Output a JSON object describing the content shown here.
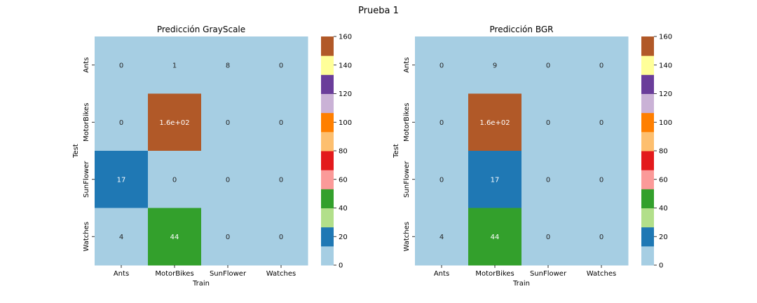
{
  "figure": {
    "suptitle": "Prueba 1"
  },
  "colormap": [
    "#a6cee3",
    "#1f78b4",
    "#b2df8a",
    "#33a02c",
    "#fb9a99",
    "#e31a1c",
    "#fdbf6f",
    "#ff7f00",
    "#cab2d6",
    "#6a3d9a",
    "#ffff99",
    "#b15928"
  ],
  "chart_data": [
    {
      "type": "heatmap",
      "title": "Predicción GrayScale",
      "xlabel": "Train",
      "ylabel": "Test",
      "x_categories": [
        "Ants",
        "MotorBikes",
        "SunFlower",
        "Watches"
      ],
      "y_categories": [
        "Ants",
        "MotorBikes",
        "SunFlower",
        "Watches"
      ],
      "values": [
        [
          0,
          1,
          8,
          0
        ],
        [
          0,
          160,
          0,
          0
        ],
        [
          17,
          0,
          0,
          0
        ],
        [
          4,
          44,
          0,
          0
        ]
      ],
      "annotations": [
        [
          "0",
          "1",
          "8",
          "0"
        ],
        [
          "0",
          "1.6e+02",
          "0",
          "0"
        ],
        [
          "17",
          "0",
          "0",
          "0"
        ],
        [
          "4",
          "44",
          "0",
          "0"
        ]
      ],
      "vmin": 0,
      "vmax": 160,
      "colorbar_ticks": [
        "0",
        "20",
        "40",
        "60",
        "80",
        "100",
        "120",
        "140",
        "160"
      ]
    },
    {
      "type": "heatmap",
      "title": "Predicción BGR",
      "xlabel": "Train",
      "ylabel": "Test",
      "x_categories": [
        "Ants",
        "MotorBikes",
        "SunFlower",
        "Watches"
      ],
      "y_categories": [
        "Ants",
        "MotorBikes",
        "SunFlower",
        "Watches"
      ],
      "values": [
        [
          0,
          9,
          0,
          0
        ],
        [
          0,
          160,
          0,
          0
        ],
        [
          0,
          17,
          0,
          0
        ],
        [
          4,
          44,
          0,
          0
        ]
      ],
      "annotations": [
        [
          "0",
          "9",
          "0",
          "0"
        ],
        [
          "0",
          "1.6e+02",
          "0",
          "0"
        ],
        [
          "0",
          "17",
          "0",
          "0"
        ],
        [
          "4",
          "44",
          "0",
          "0"
        ]
      ],
      "vmin": 0,
      "vmax": 160,
      "colorbar_ticks": [
        "0",
        "20",
        "40",
        "60",
        "80",
        "100",
        "120",
        "140",
        "160"
      ]
    }
  ]
}
